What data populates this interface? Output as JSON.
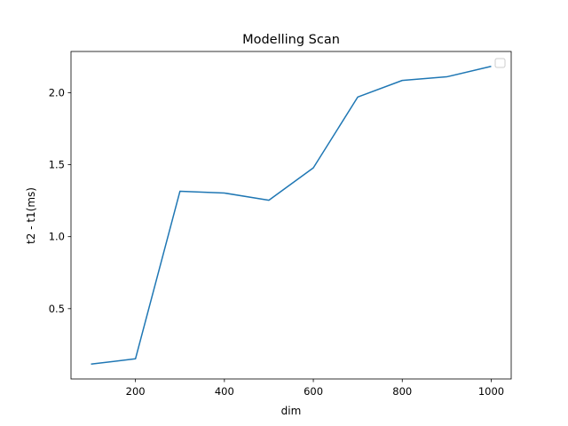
{
  "chart_data": {
    "type": "line",
    "title": "Modelling Scan",
    "xlabel": "dim",
    "ylabel": "t2 - t1(ms)",
    "x": [
      100,
      200,
      300,
      400,
      500,
      600,
      700,
      800,
      900,
      1000
    ],
    "series": [
      {
        "values": [
          0.115,
          0.152,
          1.315,
          1.303,
          1.253,
          1.478,
          1.97,
          2.085,
          2.11,
          2.183
        ]
      }
    ],
    "xlim": [
      55,
      1045
    ],
    "ylim": [
      0.012,
      2.286
    ],
    "xticks": [
      200,
      400,
      600,
      800,
      1000
    ],
    "yticks": [
      0.5,
      1.0,
      1.5,
      2.0
    ],
    "ytick_labels": [
      "0.5",
      "1.0",
      "1.5",
      "2.0"
    ],
    "legend": "empty box, upper right",
    "grid": false,
    "line_color": "#1f77b4"
  }
}
